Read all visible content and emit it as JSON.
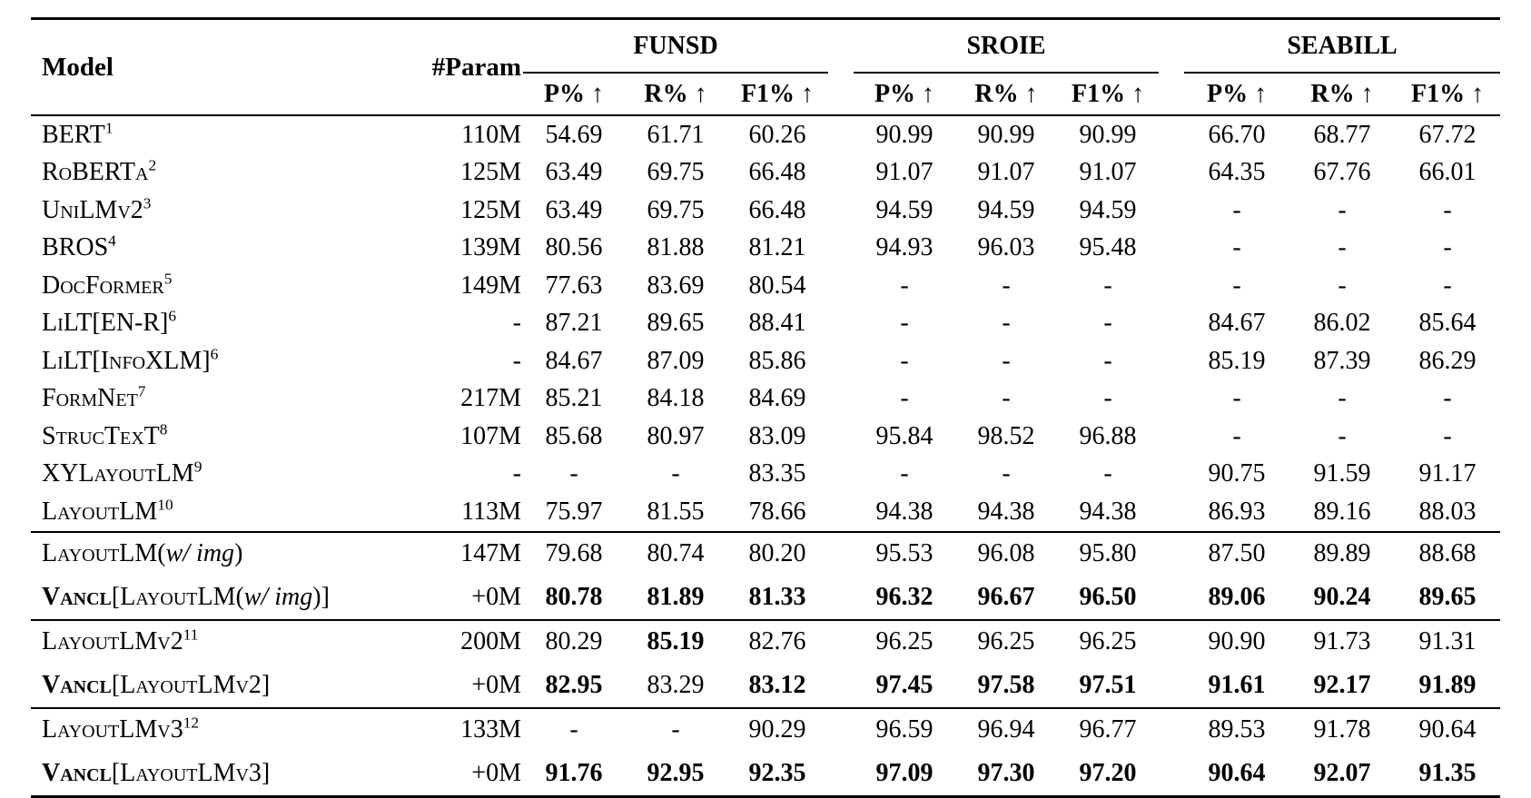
{
  "colors": {
    "text": "#000000",
    "background": "#ffffff",
    "rules": "#000000"
  },
  "header": {
    "model": "Model",
    "param": "#Param",
    "groups": [
      {
        "label": "FUNSD",
        "metrics": [
          "P% ↑",
          "R% ↑",
          "F1% ↑"
        ]
      },
      {
        "label": "SROIE",
        "metrics": [
          "P% ↑",
          "R% ↑",
          "F1% ↑"
        ]
      },
      {
        "label": "SEABILL",
        "metrics": [
          "P% ↑",
          "R% ↑",
          "F1% ↑"
        ]
      }
    ]
  },
  "sections": [
    {
      "rows": [
        {
          "name": [
            {
              "t": "BERT",
              "s": "sc"
            }
          ],
          "sup": "1",
          "param": "110M",
          "cells": [
            "54.69",
            "61.71",
            "60.26",
            "90.99",
            "90.99",
            "90.99",
            "66.70",
            "68.77",
            "67.72"
          ],
          "bold": [
            0,
            0,
            0,
            0,
            0,
            0,
            0,
            0,
            0
          ]
        },
        {
          "name": [
            {
              "t": "RoBERTa",
              "s": "sc"
            }
          ],
          "sup": "2",
          "param": "125M",
          "cells": [
            "63.49",
            "69.75",
            "66.48",
            "91.07",
            "91.07",
            "91.07",
            "64.35",
            "67.76",
            "66.01"
          ],
          "bold": [
            0,
            0,
            0,
            0,
            0,
            0,
            0,
            0,
            0
          ]
        },
        {
          "name": [
            {
              "t": "UniLMv2",
              "s": "sc"
            }
          ],
          "sup": "3",
          "param": "125M",
          "cells": [
            "63.49",
            "69.75",
            "66.48",
            "94.59",
            "94.59",
            "94.59",
            "-",
            "-",
            "-"
          ],
          "bold": [
            0,
            0,
            0,
            0,
            0,
            0,
            0,
            0,
            0
          ]
        },
        {
          "name": [
            {
              "t": "BROS",
              "s": "sc"
            }
          ],
          "sup": "4",
          "param": "139M",
          "cells": [
            "80.56",
            "81.88",
            "81.21",
            "94.93",
            "96.03",
            "95.48",
            "-",
            "-",
            "-"
          ],
          "bold": [
            0,
            0,
            0,
            0,
            0,
            0,
            0,
            0,
            0
          ]
        },
        {
          "name": [
            {
              "t": "DocFormer",
              "s": "sc"
            }
          ],
          "sup": "5",
          "param": "149M",
          "cells": [
            "77.63",
            "83.69",
            "80.54",
            "-",
            "-",
            "-",
            "-",
            "-",
            "-"
          ],
          "bold": [
            0,
            0,
            0,
            0,
            0,
            0,
            0,
            0,
            0
          ]
        },
        {
          "name": [
            {
              "t": "LiLT[EN-R]",
              "s": "sc"
            }
          ],
          "sup": "6",
          "param": "-",
          "cells": [
            "87.21",
            "89.65",
            "88.41",
            "-",
            "-",
            "-",
            "84.67",
            "86.02",
            "85.64"
          ],
          "bold": [
            0,
            0,
            0,
            0,
            0,
            0,
            0,
            0,
            0
          ]
        },
        {
          "name": [
            {
              "t": "LiLT[InfoXLM]",
              "s": "sc"
            }
          ],
          "sup": "6",
          "param": "-",
          "cells": [
            "84.67",
            "87.09",
            "85.86",
            "-",
            "-",
            "-",
            "85.19",
            "87.39",
            "86.29"
          ],
          "bold": [
            0,
            0,
            0,
            0,
            0,
            0,
            0,
            0,
            0
          ]
        },
        {
          "name": [
            {
              "t": "FormNet",
              "s": "sc"
            }
          ],
          "sup": "7",
          "param": "217M",
          "cells": [
            "85.21",
            "84.18",
            "84.69",
            "-",
            "-",
            "-",
            "-",
            "-",
            "-"
          ],
          "bold": [
            0,
            0,
            0,
            0,
            0,
            0,
            0,
            0,
            0
          ]
        },
        {
          "name": [
            {
              "t": "StrucTexT",
              "s": "sc"
            }
          ],
          "sup": "8",
          "param": "107M",
          "cells": [
            "85.68",
            "80.97",
            "83.09",
            "95.84",
            "98.52",
            "96.88",
            "-",
            "-",
            "-"
          ],
          "bold": [
            0,
            0,
            0,
            0,
            0,
            0,
            0,
            0,
            0
          ]
        },
        {
          "name": [
            {
              "t": "XYLayoutLM",
              "s": "sc"
            }
          ],
          "sup": "9",
          "param": "-",
          "cells": [
            "-",
            "-",
            "83.35",
            "-",
            "-",
            "-",
            "90.75",
            "91.59",
            "91.17"
          ],
          "bold": [
            0,
            0,
            0,
            0,
            0,
            0,
            0,
            0,
            0
          ]
        },
        {
          "name": [
            {
              "t": "LayoutLM",
              "s": "sc"
            }
          ],
          "sup": "10",
          "param": "113M",
          "cells": [
            "75.97",
            "81.55",
            "78.66",
            "94.38",
            "94.38",
            "94.38",
            "86.93",
            "89.16",
            "88.03"
          ],
          "bold": [
            0,
            0,
            0,
            0,
            0,
            0,
            0,
            0,
            0
          ]
        }
      ]
    },
    {
      "rows": [
        {
          "name": [
            {
              "t": "LayoutLM(",
              "s": "sc"
            },
            {
              "t": "w/ img",
              "s": "it"
            },
            {
              "t": ")",
              "s": "sc"
            }
          ],
          "sup": "",
          "param": "147M",
          "cells": [
            "79.68",
            "80.74",
            "80.20",
            "95.53",
            "96.08",
            "95.80",
            "87.50",
            "89.89",
            "88.68"
          ],
          "bold": [
            0,
            0,
            0,
            0,
            0,
            0,
            0,
            0,
            0
          ]
        },
        {
          "name": [
            {
              "t": "Vancl",
              "s": "sc-bold"
            },
            {
              "t": "[LayoutLM(",
              "s": "sc"
            },
            {
              "t": "w/ img",
              "s": "it"
            },
            {
              "t": ")]",
              "s": "sc"
            }
          ],
          "sup": "",
          "param": "+0M",
          "cells": [
            "80.78",
            "81.89",
            "81.33",
            "96.32",
            "96.67",
            "96.50",
            "89.06",
            "90.24",
            "89.65"
          ],
          "bold": [
            1,
            1,
            1,
            1,
            1,
            1,
            1,
            1,
            1
          ]
        }
      ]
    },
    {
      "rows": [
        {
          "name": [
            {
              "t": "LayoutLMv2",
              "s": "sc"
            }
          ],
          "sup": "11",
          "param": "200M",
          "cells": [
            "80.29",
            "85.19",
            "82.76",
            "96.25",
            "96.25",
            "96.25",
            "90.90",
            "91.73",
            "91.31"
          ],
          "bold": [
            0,
            1,
            0,
            0,
            0,
            0,
            0,
            0,
            0
          ]
        },
        {
          "name": [
            {
              "t": "Vancl",
              "s": "sc-bold"
            },
            {
              "t": "[LayoutLMv2]",
              "s": "sc"
            }
          ],
          "sup": "",
          "param": "+0M",
          "cells": [
            "82.95",
            "83.29",
            "83.12",
            "97.45",
            "97.58",
            "97.51",
            "91.61",
            "92.17",
            "91.89"
          ],
          "bold": [
            1,
            0,
            1,
            1,
            1,
            1,
            1,
            1,
            1
          ]
        }
      ]
    },
    {
      "rows": [
        {
          "name": [
            {
              "t": "LayoutLMv3",
              "s": "sc"
            }
          ],
          "sup": "12",
          "param": "133M",
          "cells": [
            "-",
            "-",
            "90.29",
            "96.59",
            "96.94",
            "96.77",
            "89.53",
            "91.78",
            "90.64"
          ],
          "bold": [
            0,
            0,
            0,
            0,
            0,
            0,
            0,
            0,
            0
          ]
        },
        {
          "name": [
            {
              "t": "Vancl",
              "s": "sc-bold"
            },
            {
              "t": "[LayoutLMv3]",
              "s": "sc"
            }
          ],
          "sup": "",
          "param": "+0M",
          "cells": [
            "91.76",
            "92.95",
            "92.35",
            "97.09",
            "97.30",
            "97.20",
            "90.64",
            "92.07",
            "91.35"
          ],
          "bold": [
            1,
            1,
            1,
            1,
            1,
            1,
            1,
            1,
            1
          ]
        }
      ]
    }
  ]
}
